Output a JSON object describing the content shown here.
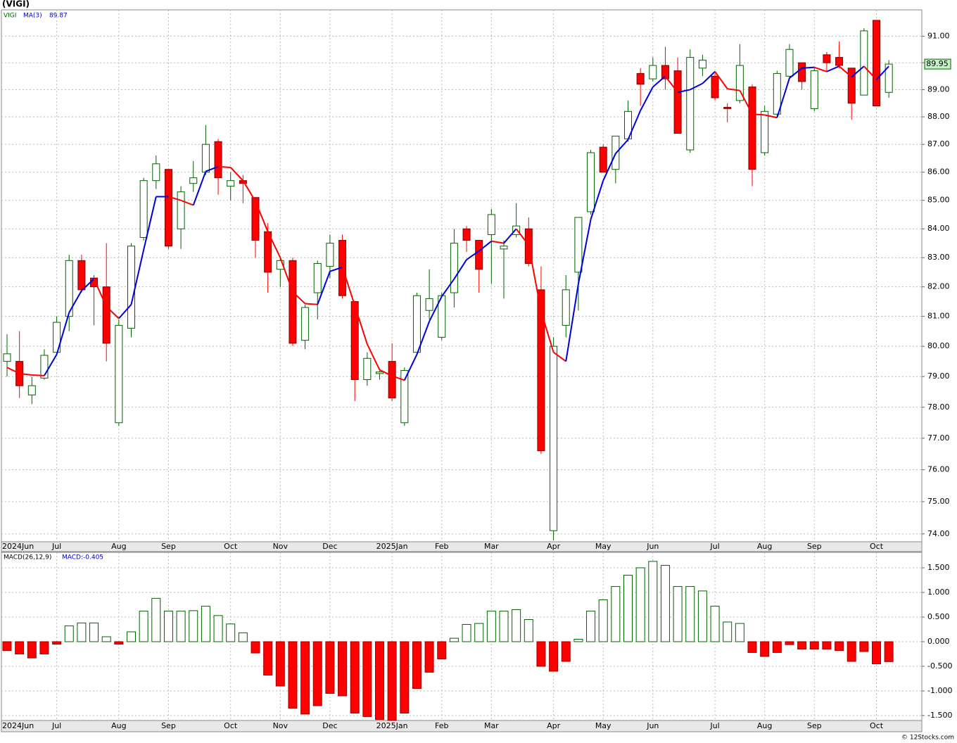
{
  "chart_data": [
    {
      "type": "candlestick",
      "title": "(VIGI)",
      "symbol": "VIGI",
      "ma_name": "MA(3)",
      "ma_value": 89.87,
      "categories": [
        "2024Jun",
        null,
        null,
        null,
        "Jul",
        null,
        null,
        null,
        null,
        "Aug",
        null,
        null,
        null,
        "Sep",
        null,
        null,
        null,
        null,
        "Oct",
        null,
        null,
        null,
        "Nov",
        null,
        null,
        null,
        "Dec",
        null,
        null,
        null,
        null,
        "2025Jan",
        null,
        null,
        null,
        "Feb",
        null,
        null,
        null,
        "Mar",
        null,
        null,
        null,
        null,
        "Apr",
        null,
        null,
        null,
        "May",
        null,
        null,
        null,
        "Jun",
        null,
        null,
        null,
        null,
        "Jul",
        null,
        null,
        null,
        "Aug",
        null,
        null,
        null,
        "Sep",
        null,
        null,
        null,
        null,
        "Oct",
        null
      ],
      "open": [
        79.5,
        79.5,
        78.4,
        78.95,
        79.8,
        81.0,
        82.9,
        82.3,
        82.0,
        77.5,
        80.6,
        83.7,
        85.7,
        86.1,
        84.0,
        85.6,
        86.0,
        87.1,
        85.5,
        85.7,
        85.1,
        83.9,
        82.6,
        82.9,
        80.2,
        81.8,
        82.7,
        83.6,
        81.5,
        78.9,
        79.1,
        79.5,
        77.5,
        79.8,
        81.2,
        80.3,
        81.8,
        84.0,
        83.6,
        83.8,
        83.3,
        83.8,
        84.0,
        81.9,
        74.1,
        80.7,
        82.5,
        84.6,
        86.9,
        86.1,
        87.2,
        89.6,
        89.4,
        89.9,
        89.7,
        86.8,
        89.8,
        89.5,
        88.35,
        88.6,
        89.1,
        86.7,
        88.1,
        89.5,
        90.0,
        88.3,
        90.3,
        90.2,
        89.8,
        88.8,
        91.6,
        88.9
      ],
      "high": [
        80.4,
        80.5,
        79.0,
        79.9,
        81.0,
        83.1,
        83.1,
        82.4,
        83.5,
        80.9,
        83.5,
        85.8,
        86.6,
        86.1,
        85.5,
        86.4,
        87.7,
        87.2,
        86.0,
        85.9,
        85.1,
        84.2,
        83.0,
        83.0,
        81.4,
        82.9,
        83.8,
        83.8,
        81.5,
        79.8,
        79.2,
        80.1,
        79.3,
        81.8,
        82.6,
        81.8,
        84.0,
        84.1,
        83.6,
        84.7,
        83.6,
        84.9,
        84.4,
        82.7,
        80.3,
        82.4,
        84.4,
        86.8,
        87.0,
        87.3,
        88.6,
        89.8,
        90.2,
        90.6,
        90.2,
        90.5,
        90.3,
        89.6,
        88.5,
        90.7,
        89.2,
        88.4,
        89.7,
        90.7,
        90.0,
        89.8,
        90.4,
        90.8,
        89.8,
        91.3,
        91.6,
        90.1
      ],
      "low": [
        79.0,
        78.3,
        78.1,
        78.9,
        79.7,
        80.5,
        81.8,
        80.7,
        79.5,
        77.4,
        80.3,
        83.6,
        85.4,
        83.3,
        83.3,
        85.3,
        85.9,
        85.2,
        85.0,
        84.9,
        83.0,
        81.8,
        82.0,
        80.0,
        79.9,
        80.9,
        82.3,
        81.6,
        78.2,
        78.7,
        78.9,
        78.2,
        77.4,
        79.7,
        80.9,
        80.2,
        81.3,
        83.2,
        81.8,
        82.1,
        81.6,
        83.7,
        82.7,
        76.5,
        73.8,
        80.3,
        81.2,
        84.5,
        86.0,
        85.6,
        87.1,
        88.4,
        89.3,
        89.0,
        87.4,
        86.7,
        89.5,
        88.6,
        87.8,
        88.5,
        85.5,
        86.6,
        88.0,
        89.4,
        89.0,
        88.2,
        89.7,
        89.8,
        87.9,
        88.8,
        88.4,
        88.7
      ],
      "close": [
        79.75,
        78.7,
        78.7,
        79.7,
        80.8,
        82.9,
        81.9,
        82.0,
        80.1,
        80.7,
        83.4,
        85.7,
        86.3,
        83.4,
        85.3,
        85.8,
        87.0,
        85.8,
        85.7,
        85.6,
        83.6,
        82.5,
        82.9,
        80.1,
        81.3,
        82.8,
        83.5,
        81.7,
        78.9,
        79.6,
        79.15,
        78.3,
        79.2,
        81.7,
        81.6,
        81.7,
        83.5,
        83.6,
        82.6,
        84.5,
        83.4,
        84.1,
        82.8,
        76.6,
        80.0,
        81.9,
        84.4,
        86.7,
        86.0,
        87.3,
        88.2,
        89.2,
        89.9,
        89.4,
        87.4,
        90.2,
        90.1,
        88.7,
        88.3,
        89.9,
        86.1,
        88.2,
        89.6,
        90.5,
        89.3,
        89.7,
        90.0,
        89.9,
        88.5,
        91.2,
        88.4,
        89.95
      ],
      "ma": [
        79.3,
        79.1,
        79.05,
        79.03,
        79.73,
        81.13,
        81.87,
        82.27,
        81.33,
        80.93,
        81.4,
        83.27,
        85.13,
        85.13,
        85.0,
        84.83,
        86.03,
        86.2,
        86.17,
        85.7,
        84.97,
        83.9,
        83.0,
        81.83,
        81.43,
        81.4,
        82.53,
        82.67,
        81.37,
        80.07,
        79.22,
        79.02,
        78.88,
        79.73,
        80.83,
        81.67,
        82.27,
        82.93,
        83.23,
        83.57,
        83.5,
        84.0,
        83.43,
        81.17,
        79.8,
        79.5,
        82.1,
        84.33,
        85.7,
        86.67,
        87.17,
        88.23,
        89.1,
        89.5,
        88.9,
        89.0,
        89.23,
        89.67,
        89.03,
        88.97,
        88.1,
        88.07,
        87.97,
        89.43,
        89.8,
        89.83,
        89.67,
        89.87,
        89.47,
        89.87,
        89.37,
        89.87
      ],
      "up_color": "#006400",
      "down_color": "#ff0000",
      "ma_up_color": "#0000dd",
      "ma_down_color": "#ff0000",
      "ylog": true,
      "ylim": [
        73.76,
        92.0
      ],
      "grid": true,
      "yticks": [
        {
          "value": 74,
          "label": "74.00"
        },
        {
          "value": 75,
          "label": "75.00"
        },
        {
          "value": 76,
          "label": "76.00"
        },
        {
          "value": 77,
          "label": "77.00"
        },
        {
          "value": 78,
          "label": "78.00"
        },
        {
          "value": 79,
          "label": "79.00"
        },
        {
          "value": 80,
          "label": "80.00"
        },
        {
          "value": 81,
          "label": "81.00"
        },
        {
          "value": 82,
          "label": "82.00"
        },
        {
          "value": 83,
          "label": "83.00"
        },
        {
          "value": 84,
          "label": "84.00"
        },
        {
          "value": 85,
          "label": "85.00"
        },
        {
          "value": 86,
          "label": "86.00"
        },
        {
          "value": 87,
          "label": "87.00"
        },
        {
          "value": 88,
          "label": "88.00"
        },
        {
          "value": 89,
          "label": "89.00"
        },
        {
          "value": 90,
          "label": "90.00"
        },
        {
          "value": 91,
          "label": "91.00"
        }
      ]
    },
    {
      "type": "bar",
      "name": "MACD(26,12,9)",
      "legend": "MACD:-0.405",
      "categories": [
        "2024Jun",
        null,
        null,
        null,
        "Jul",
        null,
        null,
        null,
        null,
        "Aug",
        null,
        null,
        null,
        "Sep",
        null,
        null,
        null,
        null,
        "Oct",
        null,
        null,
        null,
        "Nov",
        null,
        null,
        null,
        "Dec",
        null,
        null,
        null,
        null,
        "2025Jan",
        null,
        null,
        null,
        "Feb",
        null,
        null,
        null,
        "Mar",
        null,
        null,
        null,
        null,
        "Apr",
        null,
        null,
        null,
        "May",
        null,
        null,
        null,
        "Jun",
        null,
        null,
        null,
        null,
        "Jul",
        null,
        null,
        null,
        "Aug",
        null,
        null,
        null,
        "Sep",
        null,
        null,
        null,
        null,
        "Oct",
        null
      ],
      "values": [
        -0.18,
        -0.25,
        -0.33,
        -0.25,
        -0.05,
        0.32,
        0.38,
        0.38,
        0.1,
        -0.05,
        0.2,
        0.62,
        0.88,
        0.62,
        0.62,
        0.63,
        0.72,
        0.53,
        0.36,
        0.18,
        -0.23,
        -0.68,
        -0.9,
        -1.35,
        -1.47,
        -1.3,
        -1.05,
        -1.1,
        -1.45,
        -1.52,
        -1.58,
        -1.6,
        -1.45,
        -0.95,
        -0.62,
        -0.35,
        0.07,
        0.35,
        0.37,
        0.62,
        0.62,
        0.65,
        0.45,
        -0.5,
        -0.6,
        -0.4,
        0.05,
        0.62,
        0.85,
        1.12,
        1.35,
        1.5,
        1.63,
        1.55,
        1.12,
        1.12,
        1.03,
        0.72,
        0.4,
        0.37,
        -0.22,
        -0.3,
        -0.22,
        -0.06,
        -0.15,
        -0.15,
        -0.15,
        -0.18,
        -0.4,
        -0.2,
        -0.45,
        -0.405
      ],
      "up_color": "#006400",
      "down_color": "#ff0000",
      "ylim": [
        -1.6,
        1.814
      ],
      "grid": true,
      "yticks": [
        {
          "value": -1.5,
          "label": "-1.500"
        },
        {
          "value": -1,
          "label": "-1.000"
        },
        {
          "value": -0.5,
          "label": "-0.500"
        },
        {
          "value": 0,
          "label": "0.000"
        },
        {
          "value": 0.5,
          "label": "0.500"
        },
        {
          "value": 1,
          "label": "1.000"
        },
        {
          "value": 1.5,
          "label": "1.500"
        }
      ]
    }
  ],
  "footer": "© 12Stocks.com"
}
